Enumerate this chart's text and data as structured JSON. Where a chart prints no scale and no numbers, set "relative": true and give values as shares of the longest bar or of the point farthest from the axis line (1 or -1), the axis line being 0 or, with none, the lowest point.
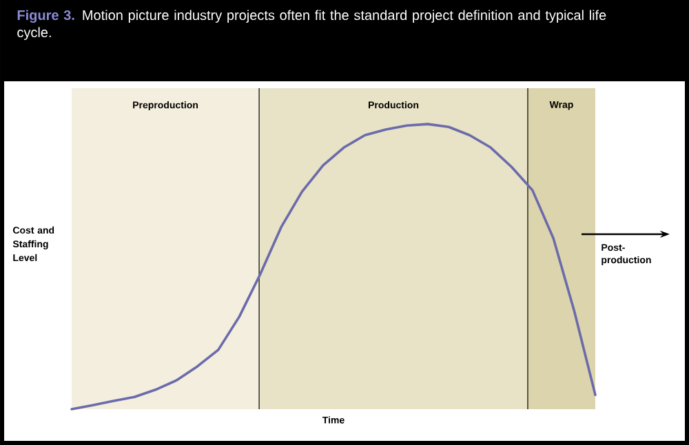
{
  "chart_data": {
    "type": "line",
    "title": "**Figure 3.** Motion picture industry projects often fit the standard project definition and typical life cycle.",
    "xlabel": "Time",
    "ylabel": "Cost and Staffing Level",
    "relative": true,
    "line_style": "solid",
    "categories": [
      null,
      null,
      null,
      null,
      null,
      null,
      null,
      null,
      null,
      null,
      null,
      null,
      null,
      null,
      null,
      null,
      null,
      null,
      null,
      null,
      null,
      null,
      null,
      null,
      null,
      null
    ],
    "series": [
      {
        "color": "#6b6bab",
        "values": [
          0,
          0.014,
          0.029,
          0.043,
          0.068,
          0.101,
          0.15,
          0.208,
          0.324,
          0.473,
          0.638,
          0.763,
          0.855,
          0.918,
          0.961,
          0.981,
          0.995,
          1,
          0.99,
          0.961,
          0.918,
          0.85,
          0.768,
          0.599,
          0.343,
          0.05
        ]
      }
    ],
    "annotations": [
      "Preproduction",
      "Production",
      "Wrap",
      "Post-production"
    ]
  }
}
